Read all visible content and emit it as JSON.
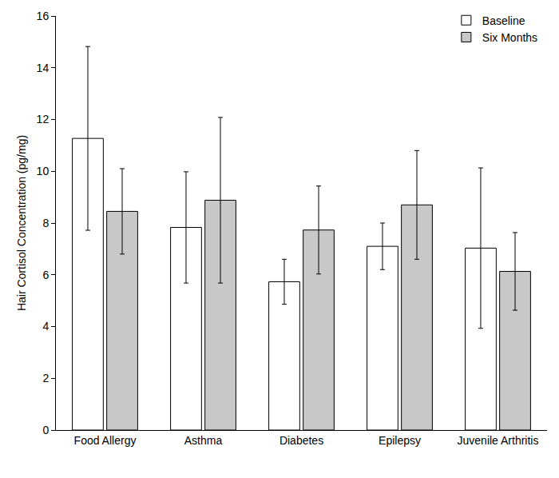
{
  "chart_data": {
    "type": "bar",
    "y_label": "Hair Cortisol Concentration (pg/mg)",
    "categories": [
      "Food Allergy",
      "Asthma",
      "Diabetes",
      "Epilepsy",
      "Juvenile Arthritis"
    ],
    "series": [
      {
        "name": "Baseline",
        "color": "#ffffff",
        "values": [
          11.27,
          7.83,
          5.73,
          7.1,
          7.03
        ],
        "errors": [
          3.55,
          2.15,
          0.87,
          0.9,
          3.1
        ]
      },
      {
        "name": "Six Months",
        "color": "#c8c8c8",
        "values": [
          8.45,
          8.88,
          7.73,
          8.7,
          6.13
        ],
        "errors": [
          1.65,
          3.2,
          1.7,
          2.1,
          1.5
        ]
      }
    ],
    "ylim": [
      0,
      16
    ],
    "yticks": [
      0,
      2,
      4,
      6,
      8,
      10,
      12,
      14,
      16
    ],
    "grid": false,
    "legend": "top right"
  }
}
